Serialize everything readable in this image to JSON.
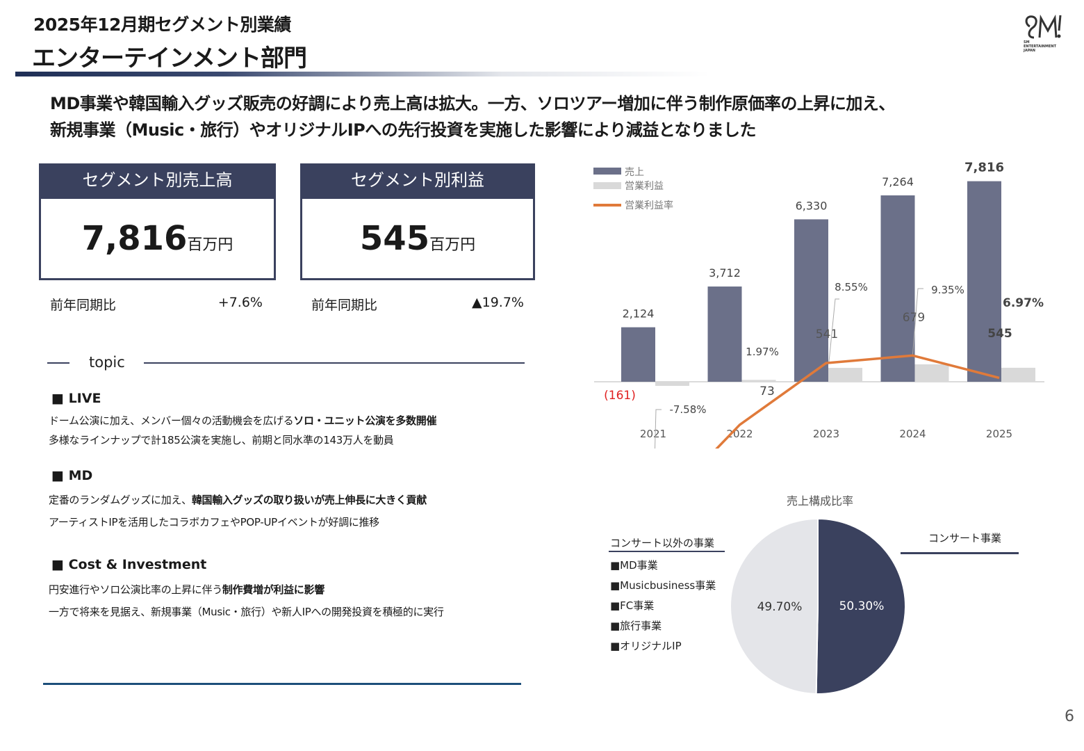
{
  "header": {
    "subtitle": "2025年12月期セグメント別業績",
    "title": "エンターテインメント部門"
  },
  "logo": {
    "name": "sm-logo",
    "text": "SM ENTERTAINMENT JAPAN"
  },
  "lead": {
    "line1": "MD事業や韓国輸入グッズ販売の好調により売上高は拡大。一方、ソロツアー増加に伴う制作原価率の上昇に加え、",
    "line2": "新規事業（Music・旅行）やオリジナルIPへの先行投資を実施した影響により減益となりました"
  },
  "kpi": [
    {
      "label": "セグメント別売上高",
      "value": "7,816",
      "unit": "百万円",
      "compare_label": "前年同期比",
      "change": "+7.6%"
    },
    {
      "label": "セグメント別利益",
      "value": "545",
      "unit": "百万円",
      "compare_label": "前年同期比",
      "change": "▲19.7%"
    }
  ],
  "topic": {
    "label": "topic",
    "sections": [
      {
        "title": "LIVE",
        "lines": [
          {
            "pre": "ドーム公演に加え、メンバー個々の活動機会を広げる",
            "bold": "ソロ・ユニット公演を多数開催",
            "post": ""
          },
          {
            "pre": "多様なラインナップで計185公演を実施し、前期と同水準の143万人を動員",
            "bold": "",
            "post": ""
          }
        ]
      },
      {
        "title": "MD",
        "lines": [
          {
            "pre": "定番のランダムグッズに加え、",
            "bold": "韓国輸入グッズの取り扱いが売上伸長に大きく貢献",
            "post": ""
          },
          {
            "pre": "アーティストIPを活用したコラボカフェやPOP-UPイベントが好調に推移",
            "bold": "",
            "post": ""
          }
        ]
      },
      {
        "title": "Cost & Investment",
        "lines": [
          {
            "pre": "円安進行やソロ公演比率の上昇に伴う",
            "bold": "制作費増が利益に影響",
            "post": ""
          },
          {
            "pre": "一方で将来を見据え、新規事業（Music・旅行）や新人IPへの開発投資を積極的に実行",
            "bold": "",
            "post": ""
          }
        ]
      }
    ]
  },
  "colors": {
    "navy": "#3a415e",
    "bar_sales": "#6b7089",
    "bar_profit": "#d9d9d9",
    "line": "#e07a3a",
    "negative": "#e02020",
    "pie_dark": "#3a415e",
    "pie_light": "#e4e5e9"
  },
  "chart_data": [
    {
      "type": "bar",
      "categories": [
        "2021",
        "2022",
        "2023",
        "2024",
        "2025"
      ],
      "series": [
        {
          "name": "売上",
          "values": [
            2124,
            3712,
            6330,
            7264,
            7816
          ],
          "labels": [
            "2,124",
            "3,712",
            "6,330",
            "7,264",
            "7,816"
          ]
        },
        {
          "name": "営業利益",
          "values": [
            -161,
            73,
            541,
            679,
            545
          ],
          "labels": [
            "(161)",
            "73",
            "541",
            "679",
            "545"
          ]
        },
        {
          "name": "営業利益率",
          "type": "line",
          "values": [
            -7.58,
            1.97,
            8.55,
            9.35,
            6.97
          ],
          "labels": [
            "-7.58%",
            "1.97%",
            "8.55%",
            "9.35%",
            "6.97%"
          ]
        }
      ],
      "legend": "top-left",
      "grid": false
    },
    {
      "type": "pie",
      "title": "売上構成比率",
      "slices": [
        {
          "name": "コンサート事業",
          "value": 50.3,
          "label": "50.30%"
        },
        {
          "name": "コンサート以外の事業",
          "value": 49.7,
          "label": "49.70%"
        }
      ],
      "other_items": [
        "■MD事業",
        "■Musicbusiness事業",
        "■FC事業",
        "■旅行事業",
        "■オリジナルIP"
      ]
    }
  ],
  "page_number": "6"
}
